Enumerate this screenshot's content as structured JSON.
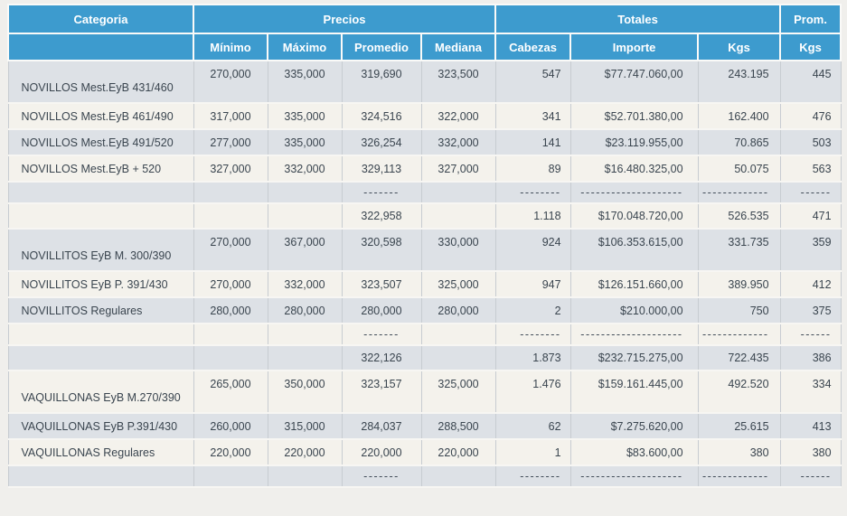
{
  "colors": {
    "header_bg": "#3d9bce",
    "header_text": "#ffffff",
    "row_gray": "#dde1e6",
    "row_cream": "#f4f2ec",
    "page_bg": "#f0efec",
    "grid_line": "#c7ccd1",
    "body_text": "#3a454f"
  },
  "chart_data": {
    "type": "table",
    "group_labels": [
      "Categoria",
      "Precios",
      "Totales",
      "Prom."
    ],
    "columns": [
      "",
      "Mínimo",
      "Máximo",
      "Promedio",
      "Mediana",
      "Cabezas",
      "Importe",
      "Kgs",
      "Kgs"
    ],
    "rows": [
      {
        "type": "tall",
        "bg": "gray",
        "cells": [
          "NOVILLOS Mest.EyB 431/460",
          "270,000",
          "335,000",
          "319,690",
          "323,500",
          "547",
          "$77.747.060,00",
          "243.195",
          "445"
        ]
      },
      {
        "type": "normal",
        "bg": "cream",
        "cells": [
          "NOVILLOS Mest.EyB 461/490",
          "317,000",
          "335,000",
          "324,516",
          "322,000",
          "341",
          "$52.701.380,00",
          "162.400",
          "476"
        ]
      },
      {
        "type": "normal",
        "bg": "gray",
        "cells": [
          "NOVILLOS Mest.EyB 491/520",
          "277,000",
          "335,000",
          "326,254",
          "332,000",
          "141",
          "$23.119.955,00",
          "70.865",
          "503"
        ]
      },
      {
        "type": "normal",
        "bg": "cream",
        "cells": [
          "NOVILLOS Mest.EyB + 520",
          "327,000",
          "332,000",
          "329,113",
          "327,000",
          "89",
          "$16.480.325,00",
          "50.075",
          "563"
        ]
      },
      {
        "type": "dash",
        "bg": "gray",
        "cells": [
          "",
          "",
          "",
          "-------",
          "",
          "--------",
          "--------------------",
          "-------------",
          "------"
        ]
      },
      {
        "type": "sub",
        "bg": "cream",
        "cells": [
          "",
          "",
          "",
          "322,958",
          "",
          "1.118",
          "$170.048.720,00",
          "526.535",
          "471"
        ]
      },
      {
        "type": "tall",
        "bg": "gray",
        "cells": [
          "NOVILLITOS EyB M. 300/390",
          "270,000",
          "367,000",
          "320,598",
          "330,000",
          "924",
          "$106.353.615,00",
          "331.735",
          "359"
        ]
      },
      {
        "type": "normal",
        "bg": "cream",
        "cells": [
          "NOVILLITOS EyB P. 391/430",
          "270,000",
          "332,000",
          "323,507",
          "325,000",
          "947",
          "$126.151.660,00",
          "389.950",
          "412"
        ]
      },
      {
        "type": "normal",
        "bg": "gray",
        "cells": [
          "NOVILLITOS Regulares",
          "280,000",
          "280,000",
          "280,000",
          "280,000",
          "2",
          "$210.000,00",
          "750",
          "375"
        ]
      },
      {
        "type": "dash",
        "bg": "cream",
        "cells": [
          "",
          "",
          "",
          "-------",
          "",
          "--------",
          "--------------------",
          "-------------",
          "------"
        ]
      },
      {
        "type": "sub",
        "bg": "gray",
        "cells": [
          "",
          "",
          "",
          "322,126",
          "",
          "1.873",
          "$232.715.275,00",
          "722.435",
          "386"
        ]
      },
      {
        "type": "tall",
        "bg": "cream",
        "cells": [
          "VAQUILLONAS EyB M.270/390",
          "265,000",
          "350,000",
          "323,157",
          "325,000",
          "1.476",
          "$159.161.445,00",
          "492.520",
          "334"
        ]
      },
      {
        "type": "normal",
        "bg": "gray",
        "cells": [
          "VAQUILLONAS EyB P.391/430",
          "260,000",
          "315,000",
          "284,037",
          "288,500",
          "62",
          "$7.275.620,00",
          "25.615",
          "413"
        ]
      },
      {
        "type": "normal",
        "bg": "cream",
        "cells": [
          "VAQUILLONAS Regulares",
          "220,000",
          "220,000",
          "220,000",
          "220,000",
          "1",
          "$83.600,00",
          "380",
          "380"
        ]
      },
      {
        "type": "dash",
        "bg": "gray",
        "cells": [
          "",
          "",
          "",
          "-------",
          "",
          "--------",
          "--------------------",
          "-------------",
          "------"
        ]
      }
    ]
  }
}
